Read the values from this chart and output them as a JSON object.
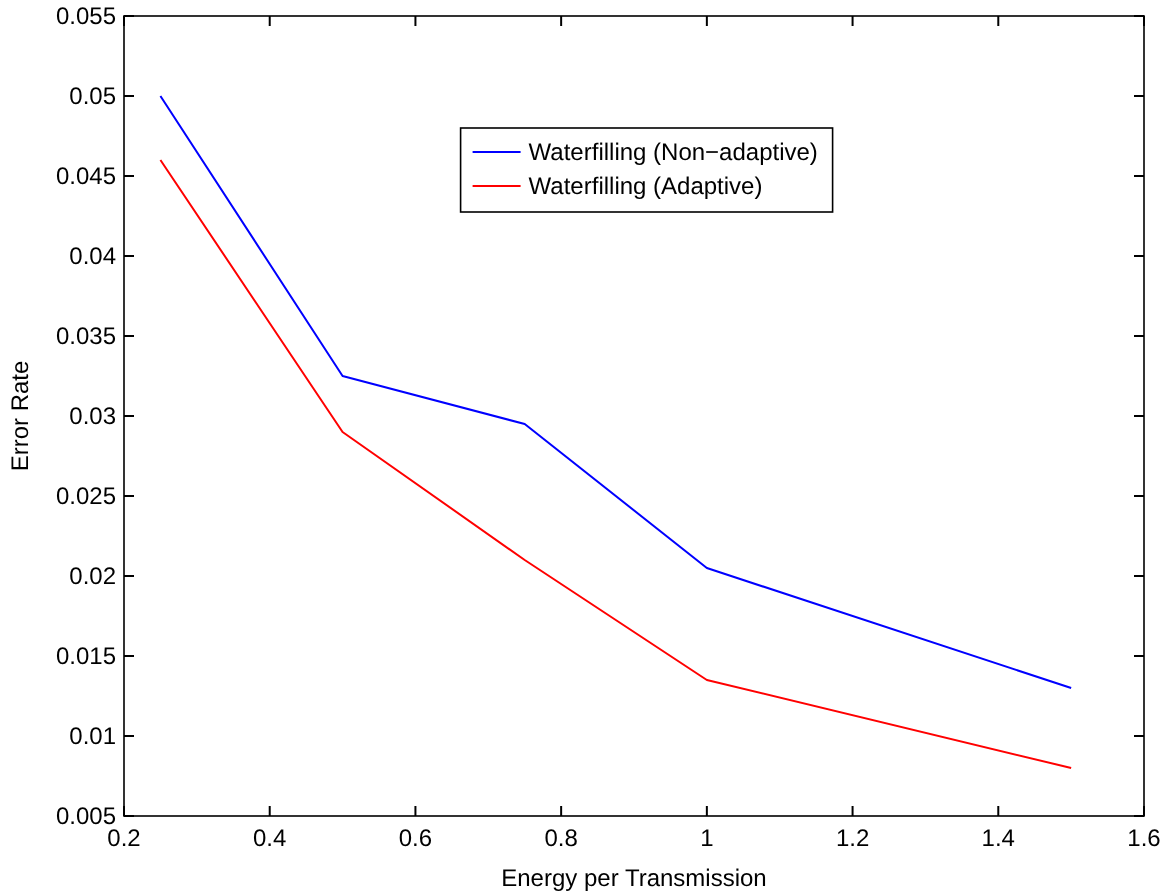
{
  "chart_data": {
    "type": "line",
    "xlabel": "Energy per Transmission",
    "ylabel": "Error Rate",
    "x": [
      0.25,
      0.5,
      0.75,
      1,
      1.5
    ],
    "series": [
      {
        "name": "Waterfilling (Non−adaptive)",
        "color": "#0000ff",
        "values": [
          0.05,
          0.0325,
          0.0295,
          0.0205,
          0.013
        ]
      },
      {
        "name": "Waterfilling (Adaptive)",
        "color": "#ff0000",
        "values": [
          0.046,
          0.029,
          0.021,
          0.0135,
          0.008
        ]
      }
    ],
    "xlim": [
      0.2,
      1.6
    ],
    "xticks": [
      0.2,
      0.4,
      0.6,
      0.8,
      1,
      1.2,
      1.4,
      1.6
    ],
    "ylim": [
      0.005,
      0.055
    ],
    "yticks": [
      0.005,
      0.01,
      0.015,
      0.02,
      0.025,
      0.03,
      0.035,
      0.04,
      0.045,
      0.05,
      0.055
    ],
    "legend": "top right",
    "grid": false,
    "marker": "none",
    "line_style": "solid"
  }
}
